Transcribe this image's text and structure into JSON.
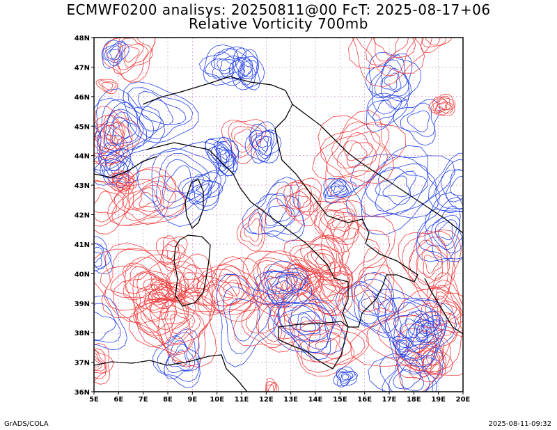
{
  "header": {
    "title_line1": "ECMWF0200 analisys: 20250811@00 FcT: 2025-08-17+06",
    "title_line2": "Relative Vorticity 700mb"
  },
  "map": {
    "lon_labels": [
      "5E",
      "6E",
      "7E",
      "8E",
      "9E",
      "10E",
      "11E",
      "12E",
      "13E",
      "14E",
      "15E",
      "16E",
      "17E",
      "18E",
      "19E",
      "20E"
    ],
    "lat_labels": [
      "48N",
      "47N",
      "46N",
      "45N",
      "44N",
      "43N",
      "42N",
      "41N",
      "40N",
      "39N",
      "38N",
      "37N",
      "36N"
    ],
    "lon_range": [
      5,
      20
    ],
    "lat_range": [
      36,
      48
    ],
    "colors": {
      "positive": "#f03c3c",
      "negative": "#2040e8",
      "coast": "#000000",
      "grid": "#c080c0"
    }
  },
  "footer": {
    "left": "GrADS/COLA",
    "right": "2025-08-11-09:32"
  }
}
